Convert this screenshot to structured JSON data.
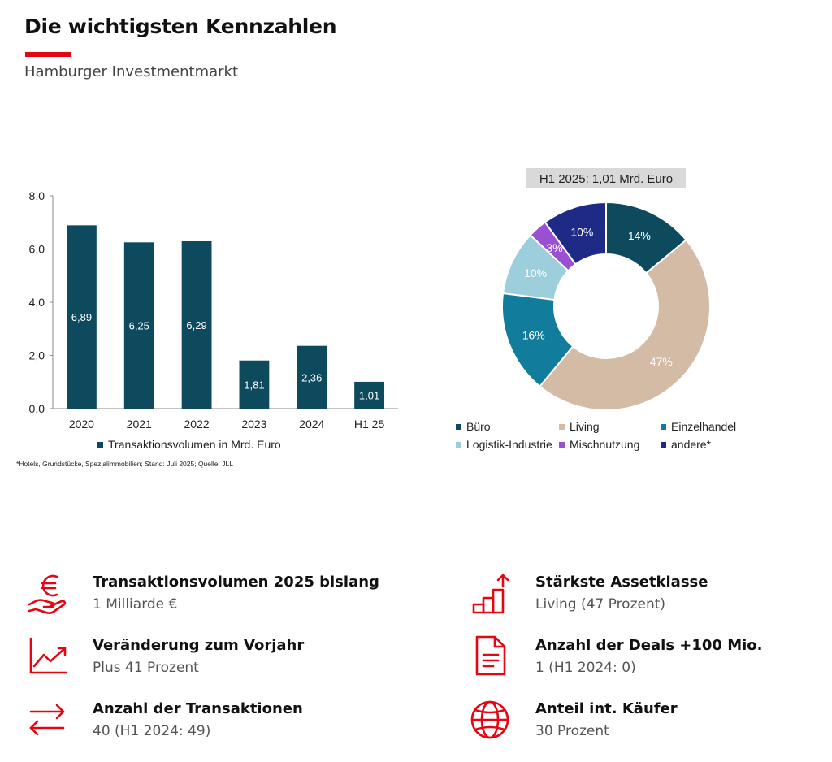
{
  "header": {
    "title": "Die wichtigsten Kennzahlen",
    "subtitle": "Hamburger Investmentmarkt",
    "accent_color": "#e30613"
  },
  "chart_data": [
    {
      "type": "bar",
      "categories": [
        "2020",
        "2021",
        "2022",
        "2023",
        "2024",
        "H1 25"
      ],
      "series": [
        {
          "name": "Transaktionsvolumen in Mrd. Euro",
          "values": [
            6.89,
            6.25,
            6.29,
            1.81,
            2.36,
            1.01
          ],
          "color": "#0d4a5e"
        }
      ],
      "data_labels": [
        "6,89",
        "6,25",
        "6,29",
        "1,81",
        "2,36",
        "1,01"
      ],
      "ytick_labels": [
        "0,0",
        "2,0",
        "4,0",
        "6,0",
        "8,0"
      ],
      "yticks": [
        0,
        2,
        4,
        6,
        8
      ],
      "ylim": [
        0,
        8
      ],
      "legend_label": "Transaktionsvolumen in Mrd. Euro",
      "legend_position": "bottom",
      "grid": false,
      "footnote": "*Hotels, Grundstücke, Spezialimmobilien; Stand: Juli 2025; Quelle: JLL"
    },
    {
      "type": "pie",
      "donut": true,
      "title": "H1 2025: 1,01 Mrd. Euro",
      "legend_position": "bottom",
      "slices": [
        {
          "name": "Büro",
          "value": 14,
          "label": "14%",
          "color": "#0d4a5e"
        },
        {
          "name": "Living",
          "value": 47,
          "label": "47%",
          "color": "#d3bba6"
        },
        {
          "name": "Einzelhandel",
          "value": 16,
          "label": "16%",
          "color": "#117c9c"
        },
        {
          "name": "Logistik-Industrie",
          "value": 10,
          "label": "10%",
          "color": "#9ccfdb"
        },
        {
          "name": "Mischnutzung",
          "value": 3,
          "label": "3%",
          "color": "#9a50d2"
        },
        {
          "name": "andere*",
          "value": 10,
          "label": "10%",
          "color": "#1d2a86"
        }
      ]
    }
  ],
  "kpis": [
    {
      "title": "Transaktionsvolumen 2025 bislang",
      "value": "1 Milliarde €",
      "icon": "euro-hand-icon"
    },
    {
      "title": "Stärkste Assetklasse",
      "value": "Living (47 Prozent)",
      "icon": "bar-steps-icon"
    },
    {
      "title": "Veränderung zum Vorjahr",
      "value": "Plus 41 Prozent",
      "icon": "trend-chart-icon"
    },
    {
      "title": "Anzahl der Deals +100 Mio.",
      "value": "1 (H1 2024: 0)",
      "icon": "document-icon"
    },
    {
      "title": "Anzahl der Transaktionen",
      "value": "40 (H1 2024: 49)",
      "icon": "exchange-arrows-icon"
    },
    {
      "title": "Anteil int. Käufer",
      "value": "30 Prozent",
      "icon": "globe-icon"
    }
  ]
}
